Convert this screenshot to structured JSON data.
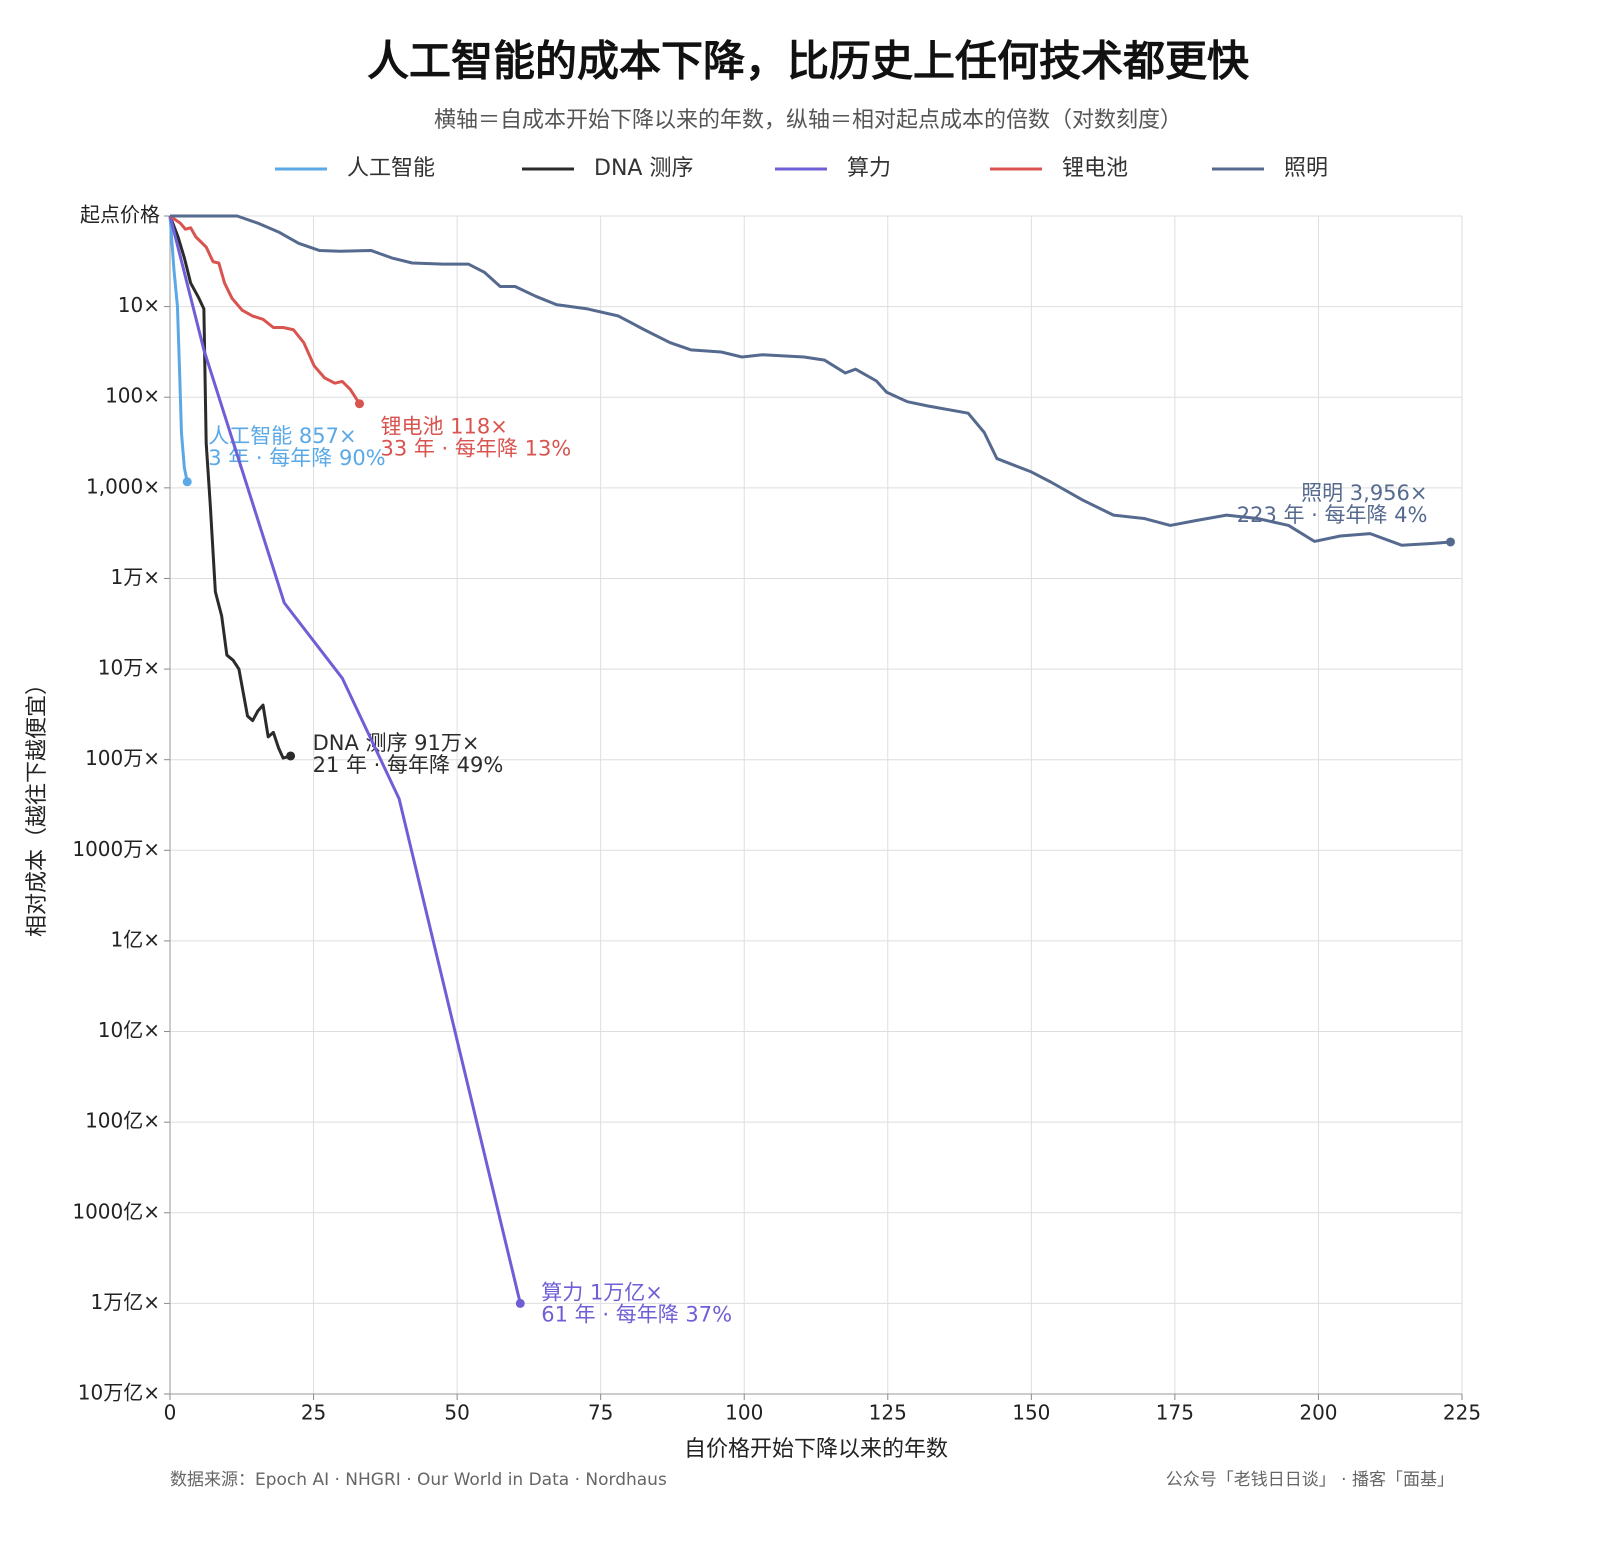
{
  "chart_data": {
    "type": "line",
    "title": "人工智能的成本下降，比历史上任何技术都更快",
    "subtitle": "横轴＝自成本开始下降以来的年数，纵轴＝相对起点成本的倍数（对数刻度）",
    "x_label": "自价格开始下降以来的年数",
    "y_label": "相对成本（越往下越便宜）",
    "source": "数据来源：Epoch AI · NHGRI · Our World in Data · Nordhaus",
    "credit": "公众号「老钱日日谈」 · 播客「面基」",
    "xlim": [
      0,
      225
    ],
    "xticks": [
      0,
      25,
      50,
      75,
      100,
      125,
      150,
      175,
      200,
      225
    ],
    "ylim": [
      1,
      10000000000000
    ],
    "log_y": true,
    "y_inverted": true,
    "grid": true,
    "yticks": [
      {
        "value": 1,
        "label": "起点价格"
      },
      {
        "value": 10,
        "label": "10×"
      },
      {
        "value": 100,
        "label": "100×"
      },
      {
        "value": 1000,
        "label": "1,000×"
      },
      {
        "value": 10000,
        "label": "1万×"
      },
      {
        "value": 100000,
        "label": "10万×"
      },
      {
        "value": 1000000,
        "label": "100万×"
      },
      {
        "value": 10000000,
        "label": "1000万×"
      },
      {
        "value": 100000000,
        "label": "1亿×"
      },
      {
        "value": 1000000000,
        "label": "10亿×"
      },
      {
        "value": 10000000000,
        "label": "100亿×"
      },
      {
        "value": 100000000000,
        "label": "1000亿×"
      },
      {
        "value": 1000000000000,
        "label": "1万亿×"
      },
      {
        "value": 10000000000000,
        "label": "10万亿×"
      }
    ],
    "series": [
      {
        "name": "人工智能",
        "color": "#5aa9e6",
        "label": "人工智能 857×",
        "note": "3 年 · 每年降 90%",
        "x": [
          0,
          0.7,
          1.3,
          1.7,
          2,
          2.5,
          3
        ],
        "values": [
          1,
          4,
          10,
          60,
          250,
          600,
          857
        ]
      },
      {
        "name": "DNA 测序",
        "color": "#2b2b2b",
        "label": "DNA 测序 91万×",
        "note": "21 年 · 每年降 49%",
        "x": [
          0,
          1.4,
          2.5,
          3.6,
          5,
          5.9,
          6.3,
          7,
          7.9,
          9,
          9.9,
          11,
          12,
          13.5,
          14.4,
          15.3,
          16.2,
          17.1,
          18,
          18.9,
          19.7,
          21
        ],
        "values": [
          1,
          1.7,
          2.9,
          5.5,
          8,
          10.6,
          320,
          1500,
          14000,
          26000,
          70000,
          80000,
          100000,
          330000,
          370000,
          290000,
          250000,
          560000,
          500000,
          740000,
          960000,
          910000
        ]
      },
      {
        "name": "算力",
        "color": "#6f5fd6",
        "label": "算力 1万亿×",
        "note": "61 年 · 每年降 37%",
        "x": [
          0,
          2.5,
          5.9,
          19.9,
          30,
          39.9,
          61
        ],
        "values": [
          1,
          4.2,
          30,
          18600,
          126000,
          2700000,
          1000000000000
        ]
      },
      {
        "name": "锂电池",
        "color": "#d9534f",
        "label": "锂电池 118×",
        "note": "33 年 · 每年降 13%",
        "x": [
          0,
          1.8,
          2.7,
          3.6,
          4.5,
          6.3,
          7.5,
          8.5,
          9.5,
          10.8,
          12.6,
          14.4,
          16.2,
          18,
          19.7,
          21.5,
          23.3,
          25.1,
          26.9,
          28.7,
          30,
          31.4,
          33
        ],
        "values": [
          1,
          1.2,
          1.4,
          1.35,
          1.7,
          2.2,
          3.2,
          3.3,
          5.5,
          8.1,
          11,
          12.7,
          13.8,
          17,
          17,
          18,
          25,
          45,
          61,
          70,
          67,
          82,
          118
        ]
      },
      {
        "name": "照明",
        "color": "#566a8f",
        "label": "照明 3,956×",
        "note": "223 年 · 每年降 4%",
        "x": [
          0,
          6.3,
          11.7,
          15.3,
          18.9,
          22.4,
          26,
          29.6,
          35,
          38.6,
          42.2,
          47.6,
          52,
          54.8,
          57.5,
          60.1,
          63.7,
          67.3,
          72.7,
          78.1,
          82.6,
          87.1,
          90.7,
          96,
          99.6,
          103.2,
          110.4,
          114,
          117.6,
          119.4,
          123,
          124.8,
          128.4,
          132,
          139,
          141.8,
          144,
          150,
          153.5,
          158.9,
          164.3,
          169.7,
          174.2,
          178.6,
          184,
          189.4,
          194.8,
          199.3,
          203.8,
          209,
          214.5,
          220,
          223
        ],
        "values": [
          1,
          1,
          1,
          1.2,
          1.5,
          2,
          2.4,
          2.45,
          2.4,
          2.9,
          3.3,
          3.4,
          3.4,
          4.2,
          6,
          6,
          7.7,
          9.5,
          10.6,
          12.7,
          18,
          25,
          30,
          31.7,
          36,
          34,
          36,
          39,
          54,
          49,
          66,
          88,
          112,
          125,
          150,
          245,
          475,
          667,
          870,
          1360,
          2000,
          2180,
          2600,
          2300,
          2000,
          2180,
          2600,
          3900,
          3400,
          3200,
          4300,
          4100,
          3956
        ]
      }
    ]
  }
}
